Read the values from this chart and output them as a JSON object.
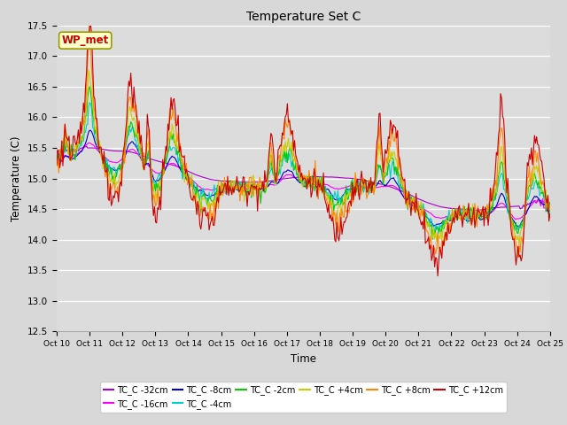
{
  "title": "Temperature Set C",
  "xlabel": "Time",
  "ylabel": "Temperature (C)",
  "ylim": [
    12.5,
    17.5
  ],
  "yticks": [
    12.5,
    13.0,
    13.5,
    14.0,
    14.5,
    15.0,
    15.5,
    16.0,
    16.5,
    17.0,
    17.5
  ],
  "xtick_labels": [
    "Oct 10",
    "Oct 11",
    "Oct 12",
    "Oct 13",
    "Oct 14",
    "Oct 15",
    "Oct 16",
    "Oct 17",
    "Oct 18",
    "Oct 19",
    "Oct 20",
    "Oct 21",
    "Oct 22",
    "Oct 23",
    "Oct 24",
    "Oct 25"
  ],
  "wp_met_label": "WP_met",
  "wp_met_color": "#cc0000",
  "wp_met_bg": "#ffffcc",
  "series": [
    {
      "label": "TC_C -32cm",
      "color": "#aa00cc"
    },
    {
      "label": "TC_C -16cm",
      "color": "#ff00ff"
    },
    {
      "label": "TC_C -8cm",
      "color": "#0000cc"
    },
    {
      "label": "TC_C -4cm",
      "color": "#00cccc"
    },
    {
      "label": "TC_C -2cm",
      "color": "#00cc00"
    },
    {
      "label": "TC_C +4cm",
      "color": "#cccc00"
    },
    {
      "label": "TC_C +8cm",
      "color": "#ff8800"
    },
    {
      "label": "TC_C +12cm",
      "color": "#cc0000"
    }
  ],
  "fig_bg": "#d8d8d8",
  "plot_bg": "#dcdcdc"
}
